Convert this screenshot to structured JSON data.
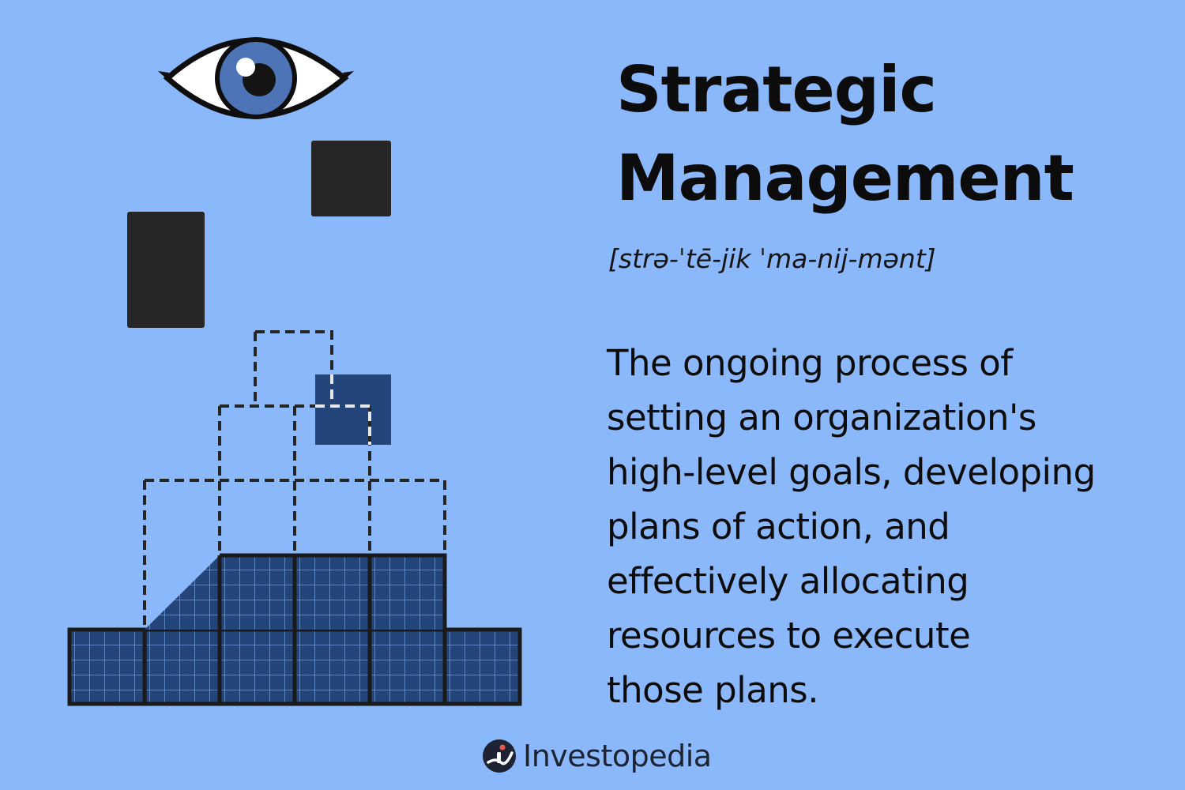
{
  "title_lines": [
    "Strategic",
    "Management"
  ],
  "pronunciation": "[strə-ˈtē-jik ˈma-nij-mənt]",
  "definition_lines": [
    "The ongoing process of",
    "setting an organization's",
    "high-level goals, developing",
    "plans of action, and",
    "effectively allocating",
    "resources to execute",
    "those plans."
  ],
  "brand": {
    "name": "Investopedia",
    "logo_icon": "investopedia-logo-icon"
  },
  "colors": {
    "background": "#8ab8fb",
    "dark_block": "#262626",
    "navy_fill": "#24457a",
    "grid_line": "#7ea8e6",
    "outline": "#1f1f1f",
    "eye_iris": "#4c74b6"
  },
  "icons": [
    "eye-icon"
  ]
}
